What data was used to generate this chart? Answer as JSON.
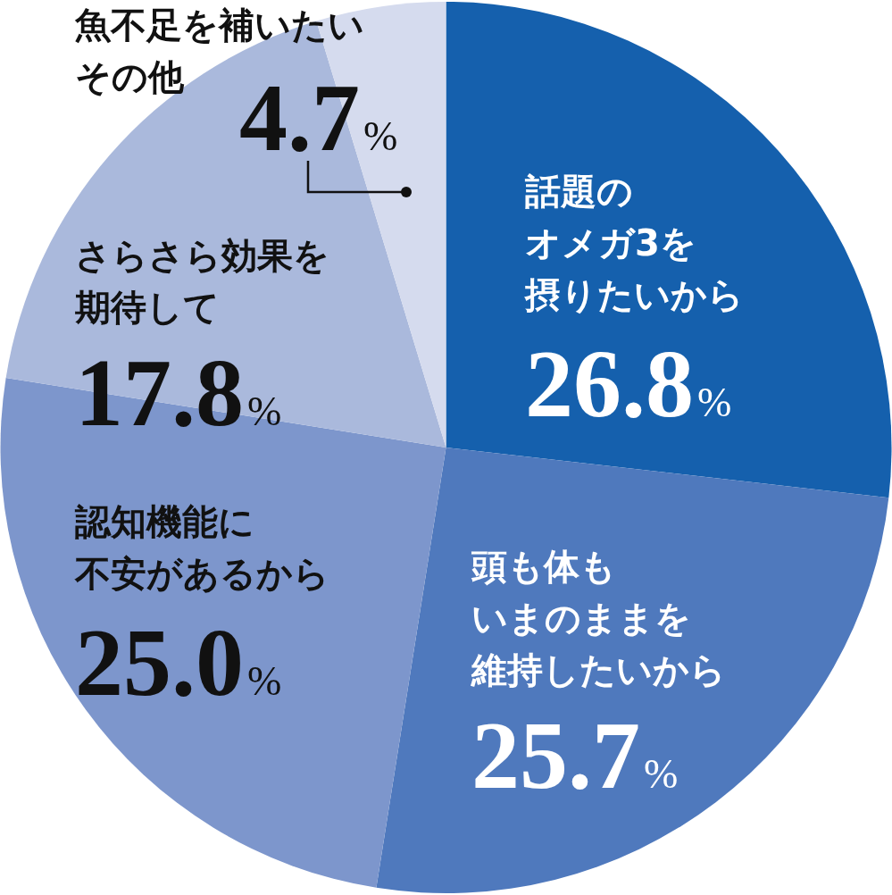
{
  "chart_data": {
    "type": "pie",
    "categories": [
      "話題のオメガ3を摂りたいから",
      "頭も体もいまのままを維持したいから",
      "認知機能に不安があるから",
      "さらさら効果を期待して",
      "魚不足を補いたいその他"
    ],
    "values": [
      26.8,
      25.7,
      25.0,
      17.8,
      4.7
    ],
    "value_labels": [
      "26.8%",
      "25.7%",
      "25.0%",
      "17.8%",
      "4.7%"
    ],
    "colors": [
      "#1560ad",
      "#4f79bd",
      "#7d96cc",
      "#aab9dc",
      "#d5dbee"
    ]
  }
}
